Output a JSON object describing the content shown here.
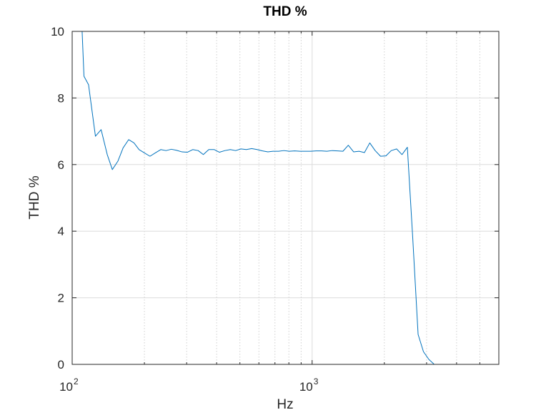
{
  "chart_data": {
    "type": "line",
    "title": "THD %",
    "xlabel": "Hz",
    "ylabel": "THD %",
    "x_scale": "log",
    "xlim": [
      100,
      6000
    ],
    "ylim": [
      0,
      10
    ],
    "grid": true,
    "minor_grid": true,
    "line_color": "#0072bd",
    "y_ticks": [
      0,
      2,
      4,
      6,
      8,
      10
    ],
    "y_tick_labels": [
      "0",
      "2",
      "4",
      "6",
      "8",
      "10"
    ],
    "x_ticks": [
      {
        "value": 100,
        "base": "10",
        "exp": "2"
      },
      {
        "value": 1000,
        "base": "10",
        "exp": "3"
      }
    ],
    "series": [
      {
        "x": [
          110,
          112,
          117,
          125,
          132,
          140,
          147,
          155,
          163,
          172,
          181,
          190,
          200,
          211,
          222,
          234,
          246,
          259,
          272,
          287,
          302,
          318,
          335,
          352,
          371,
          391,
          411,
          433,
          456,
          480,
          505,
          532,
          560,
          590,
          621,
          654,
          688,
          725,
          763,
          803,
          846,
          891,
          938,
          987,
          1039,
          1094,
          1152,
          1213,
          1277,
          1344,
          1415,
          1490,
          1569,
          1652,
          1739,
          1831,
          1928,
          2030,
          2137,
          2250,
          2369,
          2494,
          2626,
          2765,
          2911,
          3065,
          3227,
          3398,
          3578,
          3767,
          3966,
          4176,
          4397,
          4629,
          4874,
          5132,
          5403,
          5689,
          6000
        ],
        "y": [
          10.0,
          8.65,
          8.4,
          6.85,
          7.05,
          6.3,
          5.85,
          6.1,
          6.5,
          6.75,
          6.65,
          6.45,
          6.35,
          6.25,
          6.35,
          6.45,
          6.42,
          6.46,
          6.43,
          6.38,
          6.37,
          6.45,
          6.42,
          6.3,
          6.45,
          6.45,
          6.37,
          6.42,
          6.45,
          6.42,
          6.47,
          6.45,
          6.48,
          6.45,
          6.41,
          6.38,
          6.4,
          6.4,
          6.42,
          6.4,
          6.41,
          6.4,
          6.4,
          6.4,
          6.41,
          6.41,
          6.4,
          6.42,
          6.41,
          6.4,
          6.58,
          6.38,
          6.4,
          6.36,
          6.65,
          6.42,
          6.25,
          6.26,
          6.42,
          6.47,
          6.3,
          6.52,
          3.8,
          0.9,
          0.38,
          0.15,
          0.0,
          0.0,
          0.0,
          0.0,
          0.0,
          0.0,
          0.0,
          0.0,
          0.0,
          0.0,
          0.0,
          0.0,
          0.0
        ]
      }
    ]
  }
}
